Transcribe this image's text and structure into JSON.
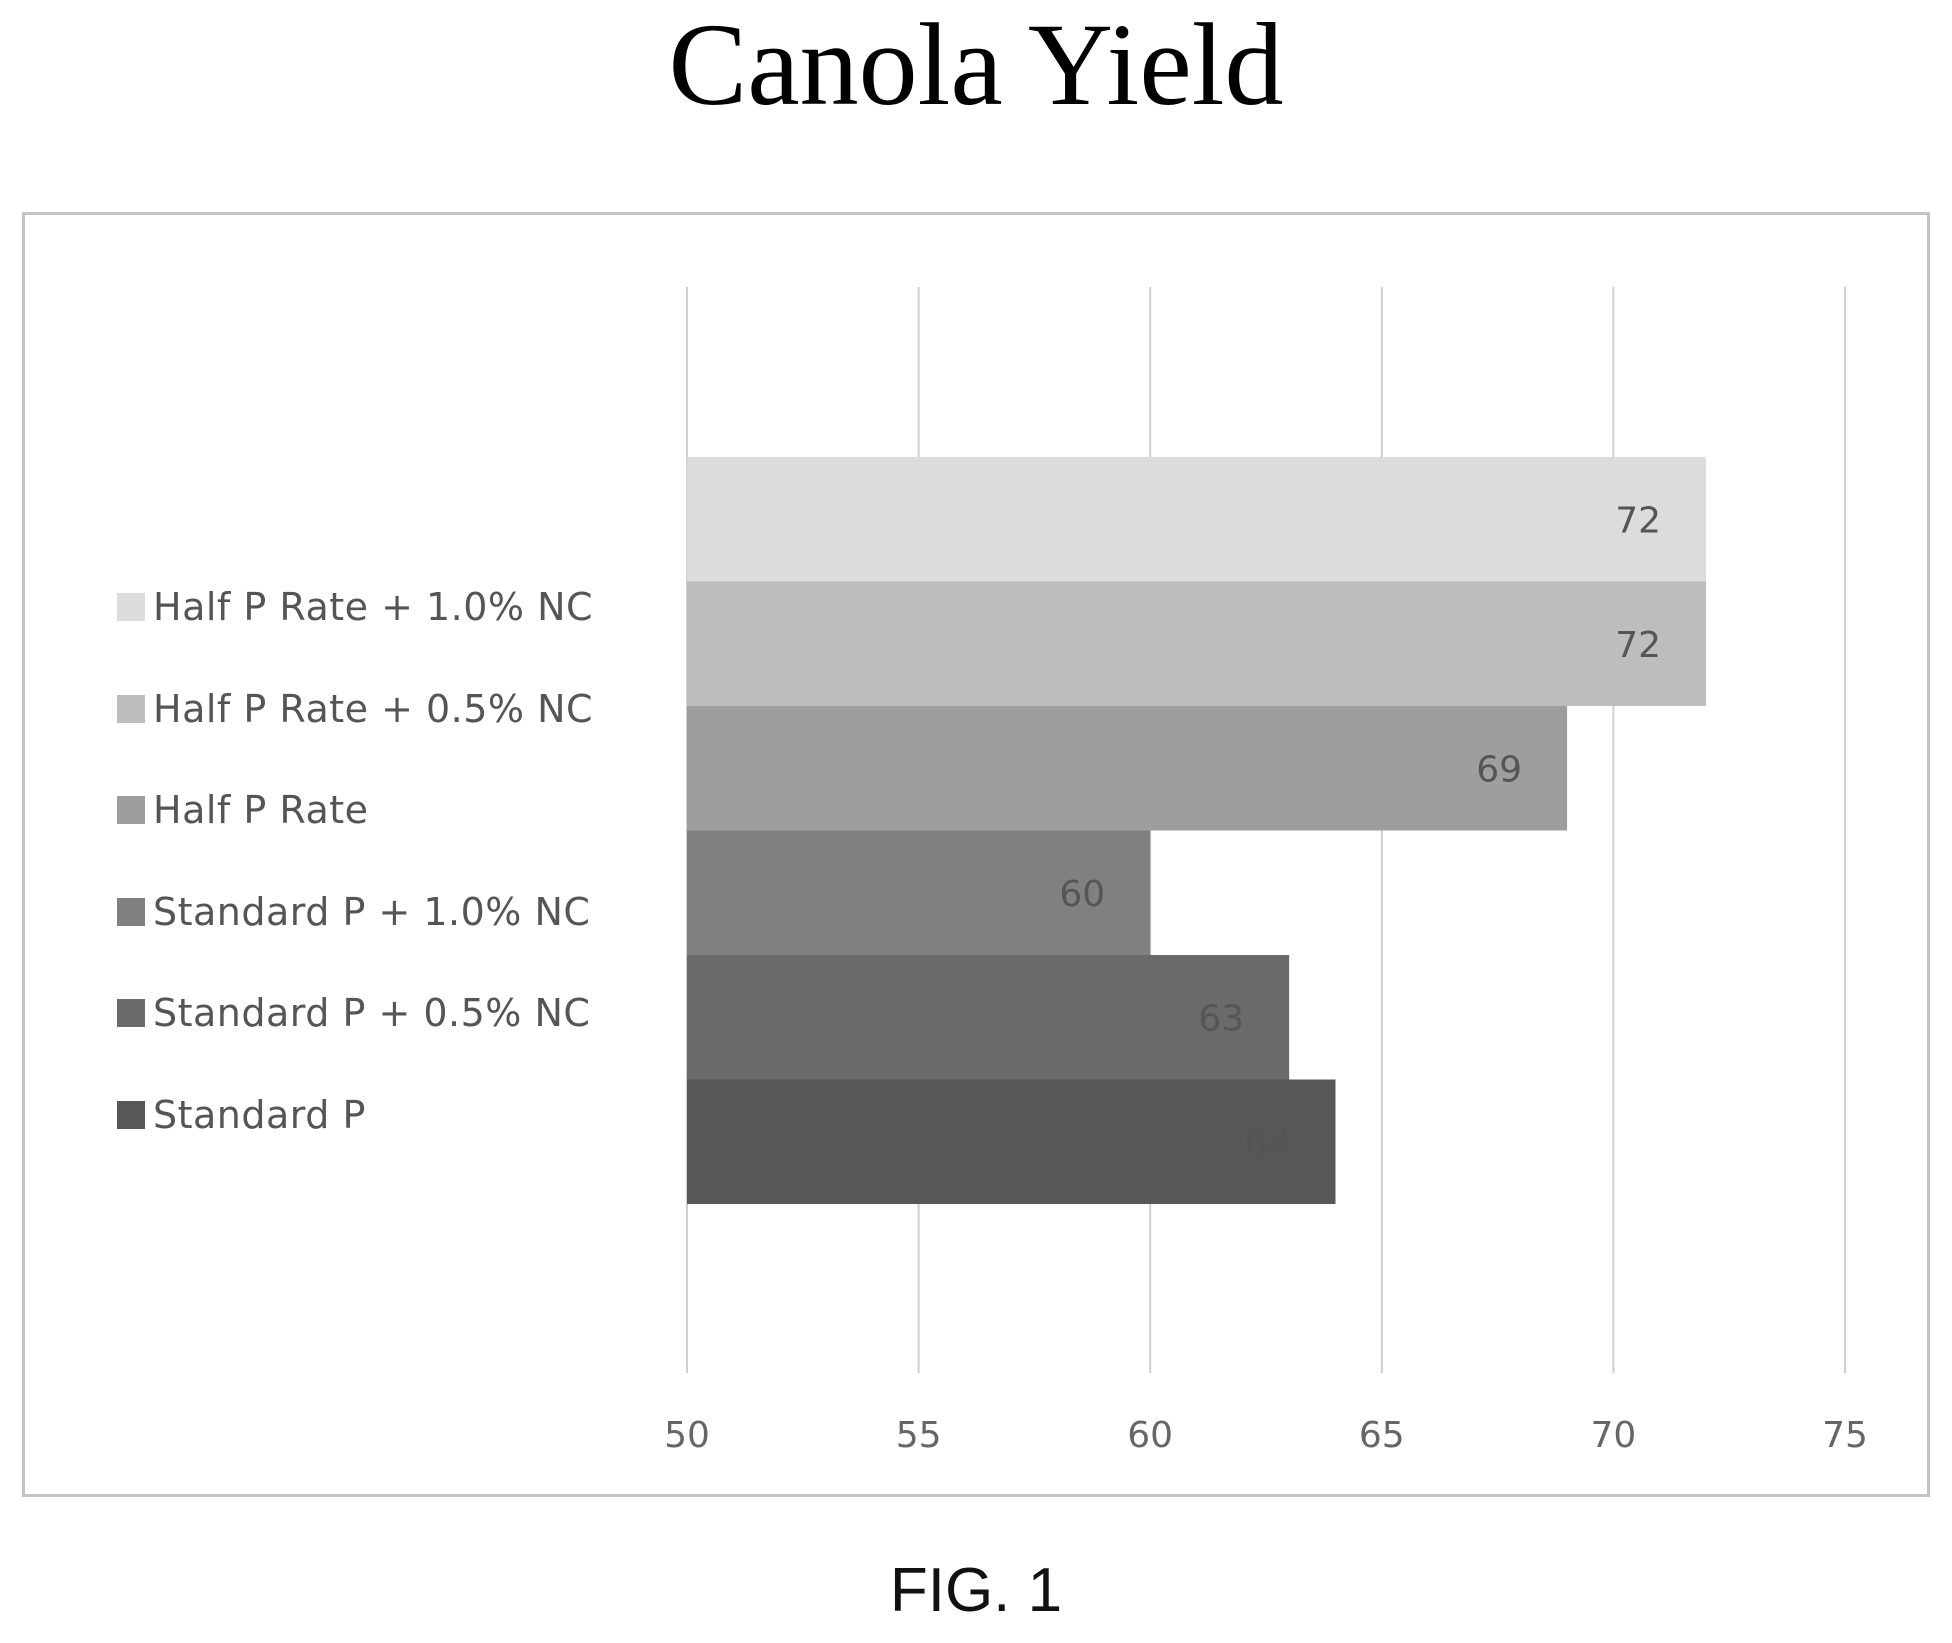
{
  "page": {
    "title": "Canola Yield",
    "figure_label": "FIG. 1"
  },
  "chart_data": {
    "type": "bar",
    "orientation": "horizontal",
    "title": "Canola Yield",
    "xlabel": "",
    "ylabel": "",
    "xlim": [
      50,
      75
    ],
    "x_ticks": [
      "50",
      "55",
      "60",
      "65",
      "70",
      "75"
    ],
    "grid": "vertical",
    "legend_position": "left",
    "categories": [
      "Half P Rate + 1.0% NC",
      "Half P Rate + 0.5% NC",
      "Half P Rate",
      "Standard P + 1.0% NC",
      "Standard P + 0.5% NC",
      "Standard P"
    ],
    "values": [
      72,
      72,
      69,
      60,
      63,
      64
    ],
    "data_labels": [
      "72",
      "72",
      "69",
      "60",
      "63",
      "64"
    ],
    "colors": [
      "#dcdcdc",
      "#bdbdbd",
      "#9e9e9e",
      "#808080",
      "#6a6a6a",
      "#575757"
    ]
  }
}
